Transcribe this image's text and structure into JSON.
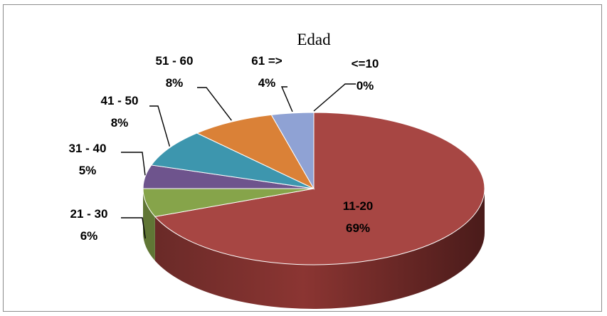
{
  "chart_data": {
    "type": "pie",
    "title": "Edad",
    "three_d": true,
    "legend": "none",
    "slices": [
      {
        "category": "<=10",
        "value": 0,
        "value_label": "0%",
        "color": "#b8c9e6"
      },
      {
        "category": "11-20",
        "value": 69,
        "value_label": "69%",
        "color": "#a74643"
      },
      {
        "category": "21 - 30",
        "value": 6,
        "value_label": "6%",
        "color": "#86a44a"
      },
      {
        "category": "31 - 40",
        "value": 5,
        "value_label": "5%",
        "color": "#6e548d"
      },
      {
        "category": "41 - 50",
        "value": 8,
        "value_label": "8%",
        "color": "#3d96ae"
      },
      {
        "category": "51 - 60",
        "value": 8,
        "value_label": "8%",
        "color": "#da8137"
      },
      {
        "category": "61 =>",
        "value": 4,
        "value_label": "4%",
        "color": "#8fa2d4"
      }
    ]
  }
}
